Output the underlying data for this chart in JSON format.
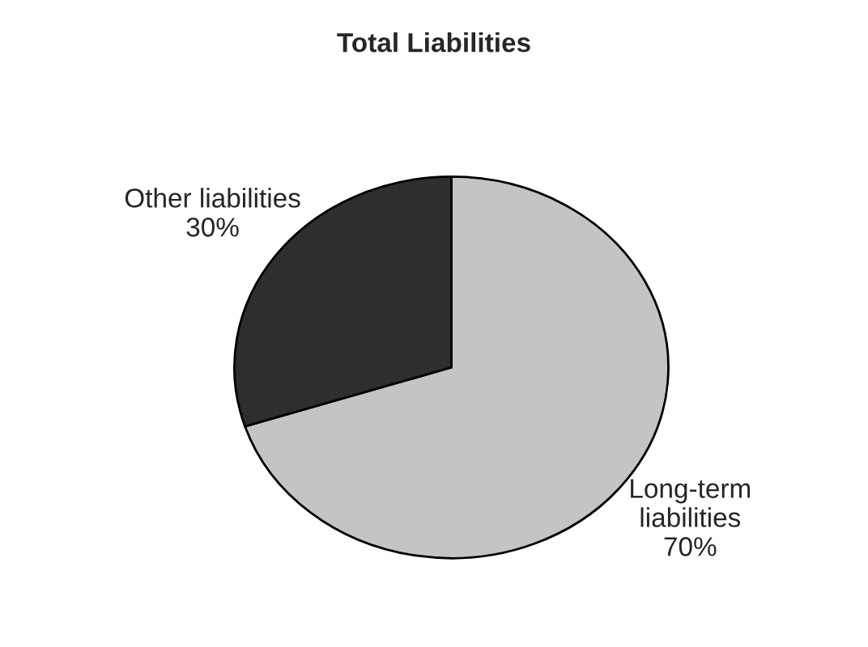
{
  "chart_data": {
    "type": "pie",
    "title": "Total Liabilities",
    "categories": [
      "Long-term\nliabilities",
      "Other liabilities"
    ],
    "values": [
      70,
      30
    ],
    "value_labels": [
      "70%",
      "30%"
    ],
    "colors": [
      "#c4c4c4",
      "#2e2e2e"
    ]
  }
}
